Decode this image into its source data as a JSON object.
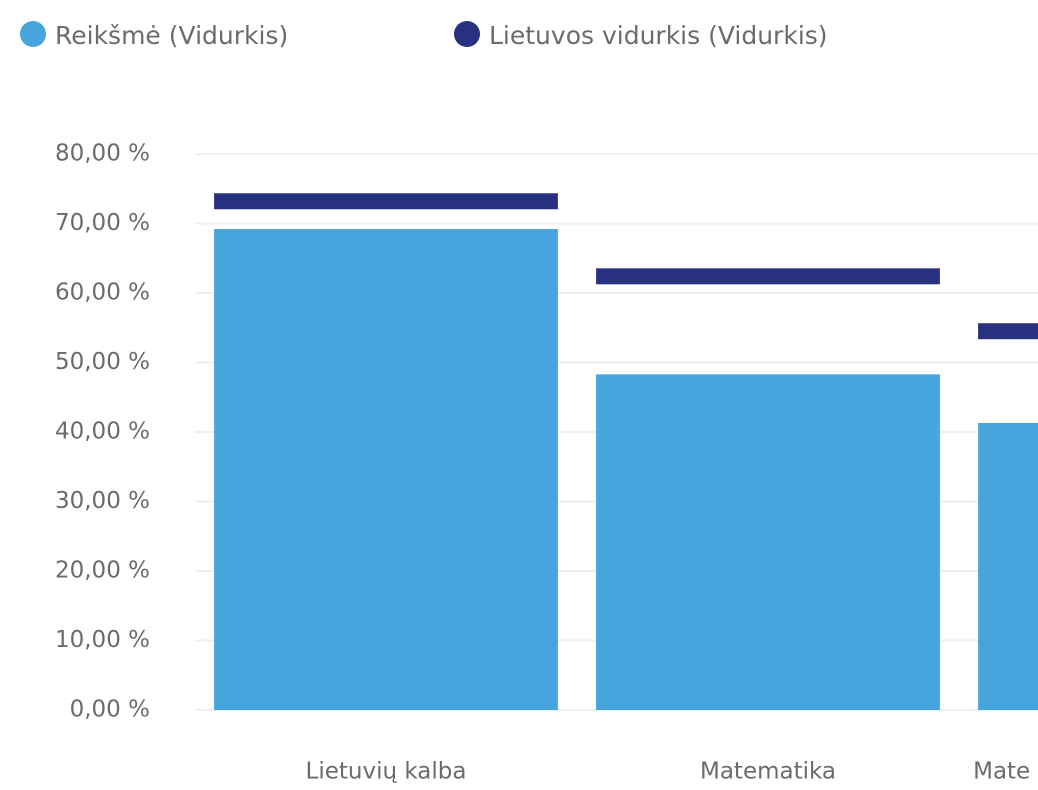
{
  "chart_data": {
    "type": "bar",
    "categories": [
      "Lietuvių kalba",
      "Matematika",
      "Mate"
    ],
    "series": [
      {
        "name": "Reikšmė (Vidurkis)",
        "color": "#45a5dc",
        "values": [
          69.2,
          48.3,
          41.3
        ]
      },
      {
        "name": "Lietuvos vidurkis (Vidurkis)",
        "color": "#283080",
        "mark": "line",
        "values": [
          73.2,
          62.4,
          54.5
        ]
      }
    ],
    "ylim": [
      0,
      80
    ],
    "yticks": [
      {
        "value": 0,
        "label": "0,00 %"
      },
      {
        "value": 10,
        "label": "10,00 %"
      },
      {
        "value": 20,
        "label": "20,00 %"
      },
      {
        "value": 30,
        "label": "30,00 %"
      },
      {
        "value": 40,
        "label": "40,00 %"
      },
      {
        "value": 50,
        "label": "50,00 %"
      },
      {
        "value": 60,
        "label": "60,00 %"
      },
      {
        "value": 70,
        "label": "70,00 %"
      },
      {
        "value": 80,
        "label": "80,00 %"
      }
    ],
    "grid": true,
    "legend": "top"
  }
}
